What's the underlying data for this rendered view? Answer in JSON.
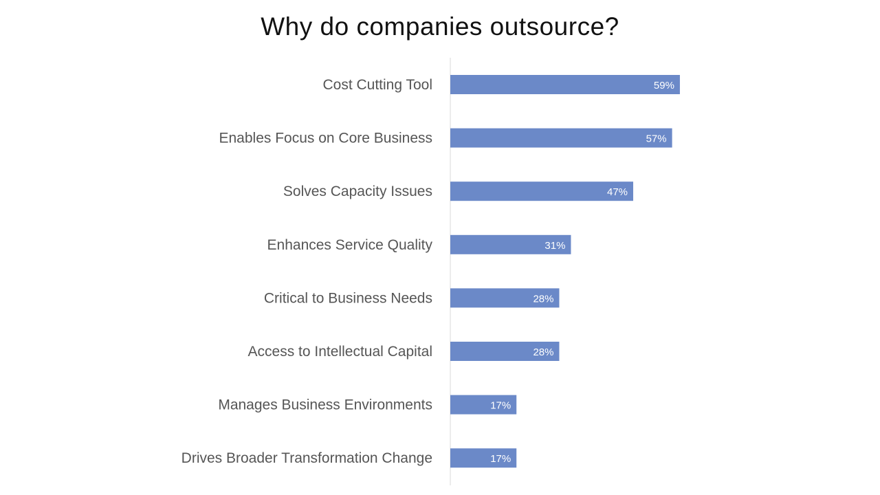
{
  "title": "Why do companies outsource?",
  "chart_data": {
    "type": "bar",
    "orientation": "horizontal",
    "title": "Why do companies outsource?",
    "categories": [
      "Cost Cutting Tool",
      "Enables Focus on Core Business",
      "Solves Capacity Issues",
      "Enhances Service Quality",
      "Critical to Business Needs",
      "Access to Intellectual Capital",
      "Manages Business Environments",
      "Drives Broader Transformation Change"
    ],
    "values": [
      59,
      57,
      47,
      31,
      28,
      28,
      17,
      17
    ],
    "data_labels": [
      "59%",
      "57%",
      "47%",
      "31%",
      "28%",
      "28%",
      "17%",
      "17%"
    ],
    "unit": "%",
    "xlim": [
      0,
      100
    ],
    "grid": false,
    "legend": "none",
    "bar_color": "#6b89c8",
    "axis_color": "#d9d9d9"
  }
}
